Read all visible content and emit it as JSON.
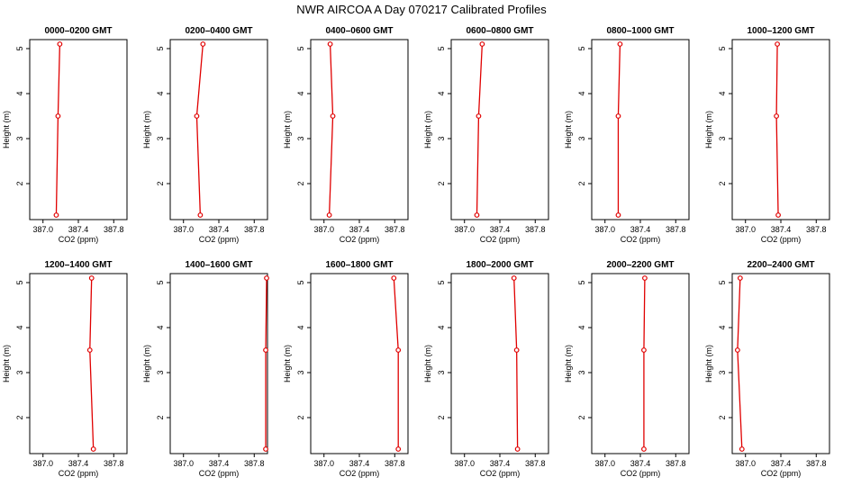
{
  "title": "NWR AIRCOA A  Day 070217  Calibrated Profiles",
  "colors": {
    "series": "#e00000",
    "axis": "#000000"
  },
  "chart_data": {
    "type": "line",
    "xlabel": "CO2 (ppm)",
    "ylabel": "Height (m)",
    "xlim": [
      386.85,
      387.95
    ],
    "ylim": [
      1.2,
      5.2
    ],
    "xticks": [
      "387.0",
      "387.4",
      "387.8"
    ],
    "xtick_values": [
      387.0,
      387.4,
      387.8
    ],
    "yticks": [
      "2",
      "3",
      "4",
      "5"
    ],
    "ytick_values": [
      2,
      3,
      4,
      5
    ],
    "heights": [
      1.3,
      3.5,
      5.1
    ],
    "panels": [
      {
        "title": "0000–0200 GMT",
        "co2": [
          387.15,
          387.17,
          387.19
        ]
      },
      {
        "title": "0200–0400 GMT",
        "co2": [
          387.19,
          387.15,
          387.22
        ]
      },
      {
        "title": "0400–0600 GMT",
        "co2": [
          387.06,
          387.1,
          387.07
        ]
      },
      {
        "title": "0600–0800 GMT",
        "co2": [
          387.14,
          387.16,
          387.2
        ]
      },
      {
        "title": "0800–1000 GMT",
        "co2": [
          387.15,
          387.15,
          387.17
        ]
      },
      {
        "title": "1000–1200 GMT",
        "co2": [
          387.37,
          387.35,
          387.36
        ]
      },
      {
        "title": "1200–1400 GMT",
        "co2": [
          387.57,
          387.53,
          387.55
        ]
      },
      {
        "title": "1400–1600 GMT",
        "co2": [
          387.93,
          387.93,
          387.94
        ]
      },
      {
        "title": "1600–1800 GMT",
        "co2": [
          387.84,
          387.84,
          387.79
        ]
      },
      {
        "title": "1800–2000 GMT",
        "co2": [
          387.6,
          387.59,
          387.56
        ]
      },
      {
        "title": "2000–2200 GMT",
        "co2": [
          387.44,
          387.44,
          387.45
        ]
      },
      {
        "title": "2200–2400 GMT",
        "co2": [
          386.96,
          386.91,
          386.94
        ]
      }
    ]
  }
}
